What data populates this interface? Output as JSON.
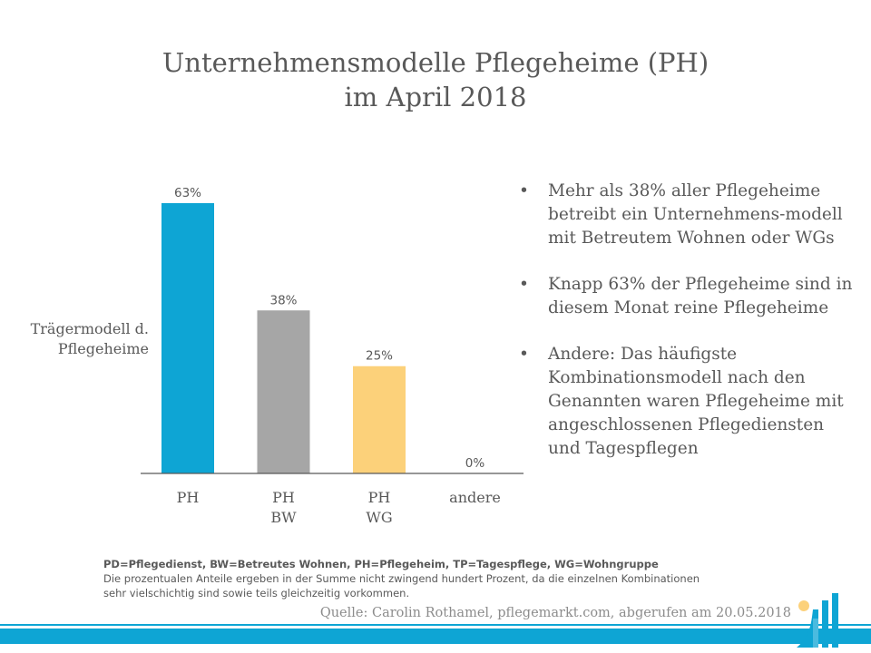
{
  "title_line1": "Unternehmensmodelle Pflegeheime (PH)",
  "title_line2": "im April 2018",
  "ylabel_line1": "Trägermodell d.",
  "ylabel_line2": "Pflegeheime",
  "chart_data": {
    "type": "bar",
    "title": "Unternehmensmodelle Pflegeheime (PH) im April 2018",
    "ylabel": "Trägermodell d. Pflegeheime",
    "xlabel": "",
    "categories": [
      [
        "PH"
      ],
      [
        "PH",
        "BW"
      ],
      [
        "PH",
        "WG"
      ],
      [
        "andere"
      ]
    ],
    "values": [
      63,
      38,
      25,
      0
    ],
    "data_labels": [
      "63%",
      "38%",
      "25%",
      "0%"
    ],
    "colors": [
      "#0ea5d4",
      "#a6a6a6",
      "#fcd17a",
      "#ffffff"
    ],
    "ylim": [
      0,
      63
    ],
    "grid": false,
    "legend": "none"
  },
  "bullets": [
    "Mehr als 38% aller Pflegeheime betreibt ein Unternehmens-modell mit Betreutem Wohnen oder WGs",
    "Knapp 63% der Pflegeheime sind in diesem Monat reine Pflegeheime",
    "Andere: Das häufigste Kombinationsmodell nach den Genannten waren Pflegeheime mit angeschlossenen Pflegediensten und Tagespflegen"
  ],
  "bullet_symbol": "•",
  "footnote_abbr": "PD=Pflegedienst, BW=Betreutes Wohnen, PH=Pflegeheim, TP=Tagespflege, WG=Wohngruppe",
  "footnote_line1": "Die prozentualen Anteile ergeben in der Summe nicht zwingend hundert Prozent, da die einzelnen Kombinationen",
  "footnote_line2": "sehr vielschichtig sind sowie teils gleichzeitig vorkommen.",
  "source": "Quelle: Carolin Rothamel, pflegemarkt.com, abgerufen am 20.05.2018",
  "brand_color": "#0ea5d4",
  "logo_icon": "pflegemarkt-logo-icon"
}
